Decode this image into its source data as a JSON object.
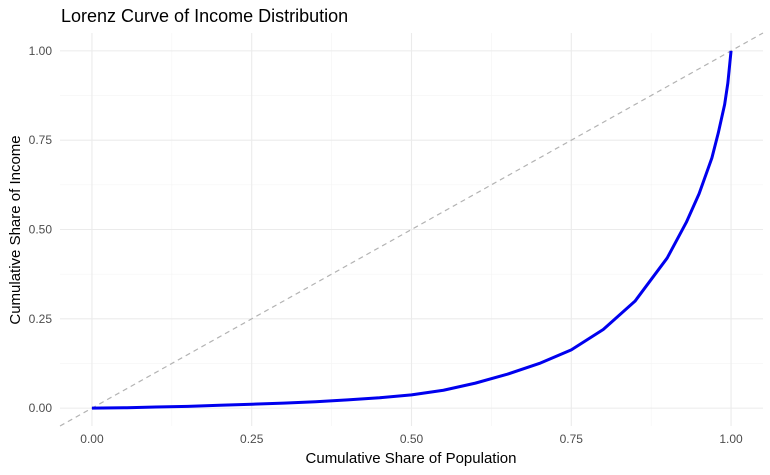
{
  "chart_data": {
    "type": "line",
    "title": "Lorenz Curve of Income Distribution",
    "xlabel": "Cumulative Share of Population",
    "ylabel": "Cumulative Share of Income",
    "xlim": [
      -0.05,
      1.05
    ],
    "ylim": [
      -0.05,
      1.05
    ],
    "x_ticks": [
      "0.00",
      "0.25",
      "0.50",
      "0.75",
      "1.00"
    ],
    "y_ticks": [
      "0.00",
      "0.25",
      "0.50",
      "0.75",
      "1.00"
    ],
    "grid": true,
    "legend": "none",
    "series": [
      {
        "style": "solid",
        "color": "#0000ee",
        "x": [
          0.0,
          0.05,
          0.1,
          0.15,
          0.2,
          0.25,
          0.3,
          0.35,
          0.4,
          0.45,
          0.5,
          0.55,
          0.6,
          0.65,
          0.7,
          0.75,
          0.8,
          0.85,
          0.9,
          0.93,
          0.95,
          0.97,
          0.98,
          0.99,
          0.995,
          1.0
        ],
        "y": [
          0.0,
          0.001,
          0.003,
          0.005,
          0.008,
          0.011,
          0.014,
          0.018,
          0.023,
          0.029,
          0.037,
          0.05,
          0.07,
          0.095,
          0.125,
          0.163,
          0.22,
          0.3,
          0.42,
          0.52,
          0.6,
          0.7,
          0.77,
          0.85,
          0.91,
          1.0
        ]
      },
      {
        "style": "dashed",
        "color": "#b3b3b3",
        "x": [
          -0.05,
          1.05
        ],
        "y": [
          -0.05,
          1.05
        ]
      }
    ]
  }
}
